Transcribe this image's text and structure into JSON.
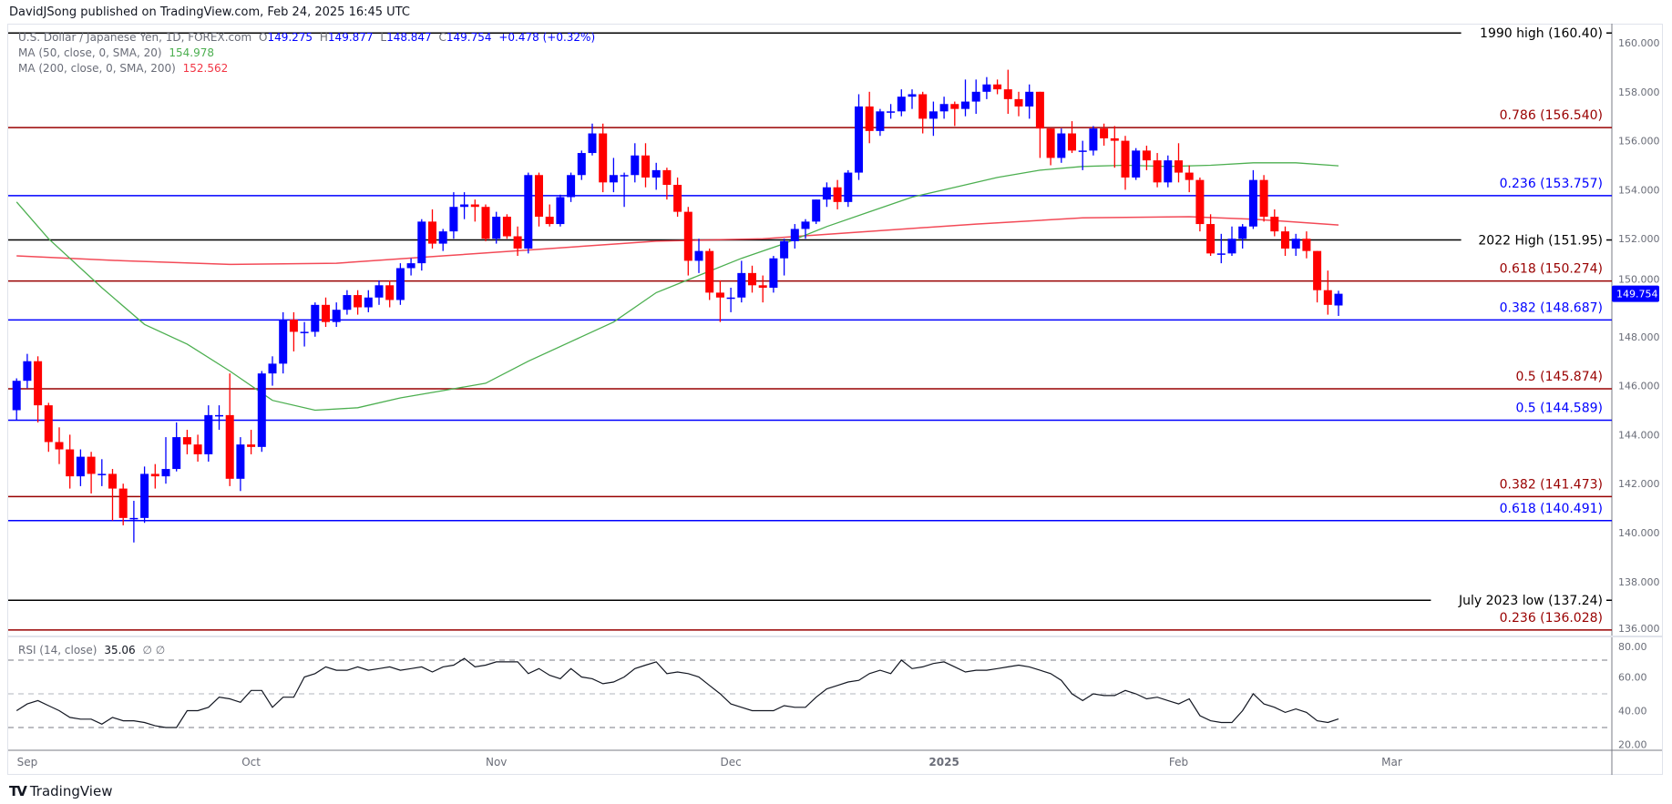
{
  "publisher_line": "DavidJSong published on TradingView.com, Feb 24, 2025 16:45 UTC",
  "legend": {
    "symbol": "U.S. Dollar / Japanese Yen, 1D, FOREX.com",
    "o_label": "O",
    "o": "149.275",
    "h_label": "H",
    "h": "149.877",
    "l_label": "L",
    "l": "148.847",
    "c_label": "C",
    "c": "149.754",
    "change": "+0.478 (+0.32%)",
    "ma50_label": "MA (50, close, 0, SMA, 20)",
    "ma50_value": "154.978",
    "ma200_label": "MA (200, close, 0, SMA, 200)",
    "ma200_value": "152.562",
    "rsi_label": "RSI (14, close)",
    "rsi_value": "35.06",
    "rsi_extra": "∅  ∅"
  },
  "brand": "TradingView",
  "colors": {
    "up": "#0000ff",
    "down": "#ff0000",
    "fib_blue": "#0000ff",
    "fib_red": "#990000",
    "ma50": "#4caf50",
    "ma200": "#f23645",
    "level_black": "#000000"
  },
  "chart_data": {
    "type": "candlestick",
    "title": "U.S. Dollar / Japanese Yen, 1D, FOREX.com",
    "ylim": [
      135.6,
      160.8
    ],
    "y_ticks": [
      "160.000",
      "158.000",
      "156.000",
      "154.000",
      "152.000",
      "150.000",
      "148.000",
      "146.000",
      "144.000",
      "142.000",
      "140.000",
      "138.000",
      "136.000"
    ],
    "y_tick_values": [
      160,
      158,
      156,
      154,
      152,
      150,
      148,
      146,
      144,
      142,
      140,
      138,
      136
    ],
    "x_labels": [
      {
        "label": "Sep",
        "bar": 1
      },
      {
        "label": "Oct",
        "bar": 22
      },
      {
        "label": "Nov",
        "bar": 45
      },
      {
        "label": "Dec",
        "bar": 67
      },
      {
        "label": "2025",
        "bar": 87
      },
      {
        "label": "Feb",
        "bar": 109
      },
      {
        "label": "Mar",
        "bar": 129
      }
    ],
    "last_price": "149.754",
    "candles": [
      [
        145.0,
        146.3,
        144.6,
        146.2
      ],
      [
        146.2,
        147.3,
        145.9,
        147.0
      ],
      [
        147.0,
        147.2,
        144.5,
        145.2
      ],
      [
        145.2,
        145.3,
        143.3,
        143.7
      ],
      [
        143.7,
        144.3,
        142.8,
        143.4
      ],
      [
        143.4,
        144.0,
        141.8,
        142.3
      ],
      [
        142.3,
        143.4,
        141.9,
        143.1
      ],
      [
        143.1,
        143.3,
        141.6,
        142.4
      ],
      [
        142.4,
        143.0,
        141.9,
        142.4
      ],
      [
        142.4,
        142.6,
        140.5,
        141.8
      ],
      [
        141.8,
        142.0,
        140.3,
        140.6
      ],
      [
        140.6,
        141.3,
        139.6,
        140.6
      ],
      [
        140.6,
        142.7,
        140.4,
        142.4
      ],
      [
        142.4,
        142.8,
        141.8,
        142.3
      ],
      [
        142.3,
        143.9,
        142.0,
        142.6
      ],
      [
        142.6,
        144.5,
        142.5,
        143.9
      ],
      [
        143.9,
        144.2,
        143.2,
        143.6
      ],
      [
        143.6,
        144.0,
        142.9,
        143.2
      ],
      [
        143.2,
        145.2,
        142.9,
        144.8
      ],
      [
        144.8,
        145.2,
        144.2,
        144.8
      ],
      [
        144.8,
        146.5,
        141.9,
        142.2
      ],
      [
        142.2,
        143.9,
        141.7,
        143.6
      ],
      [
        143.6,
        144.2,
        143.2,
        143.5
      ],
      [
        143.5,
        146.6,
        143.3,
        146.5
      ],
      [
        146.5,
        147.2,
        146.0,
        146.9
      ],
      [
        146.9,
        149.0,
        146.5,
        148.7
      ],
      [
        148.7,
        149.0,
        147.4,
        148.2
      ],
      [
        148.2,
        148.6,
        147.6,
        148.2
      ],
      [
        148.2,
        149.4,
        148.0,
        149.3
      ],
      [
        149.3,
        149.6,
        148.4,
        148.6
      ],
      [
        148.6,
        149.4,
        148.4,
        149.1
      ],
      [
        149.1,
        149.9,
        148.9,
        149.7
      ],
      [
        149.7,
        149.9,
        148.9,
        149.2
      ],
      [
        149.2,
        149.9,
        149.0,
        149.6
      ],
      [
        149.6,
        150.3,
        149.3,
        150.1
      ],
      [
        150.1,
        150.3,
        149.2,
        149.5
      ],
      [
        149.5,
        151.0,
        149.3,
        150.8
      ],
      [
        150.8,
        151.2,
        150.5,
        151.0
      ],
      [
        151.0,
        152.8,
        150.7,
        152.7
      ],
      [
        152.7,
        153.2,
        151.6,
        151.8
      ],
      [
        151.8,
        152.4,
        151.5,
        152.3
      ],
      [
        152.3,
        153.9,
        152.0,
        153.3
      ],
      [
        153.3,
        153.9,
        152.8,
        153.4
      ],
      [
        153.4,
        153.6,
        152.7,
        153.3
      ],
      [
        153.3,
        153.4,
        151.9,
        152.0
      ],
      [
        152.0,
        153.1,
        151.8,
        152.9
      ],
      [
        152.9,
        153.0,
        152.0,
        152.1
      ],
      [
        152.1,
        152.5,
        151.3,
        151.6
      ],
      [
        151.6,
        154.7,
        151.4,
        154.6
      ],
      [
        154.6,
        154.7,
        152.5,
        152.9
      ],
      [
        152.9,
        153.4,
        152.5,
        152.6
      ],
      [
        152.6,
        153.8,
        152.5,
        153.7
      ],
      [
        153.7,
        154.7,
        153.5,
        154.6
      ],
      [
        154.6,
        155.6,
        154.4,
        155.5
      ],
      [
        155.5,
        156.7,
        155.4,
        156.3
      ],
      [
        156.3,
        156.7,
        153.9,
        154.3
      ],
      [
        154.3,
        155.3,
        153.9,
        154.6
      ],
      [
        154.6,
        154.7,
        153.3,
        154.6
      ],
      [
        154.6,
        155.9,
        154.3,
        155.4
      ],
      [
        155.4,
        155.9,
        154.1,
        154.5
      ],
      [
        154.5,
        155.1,
        154.0,
        154.8
      ],
      [
        154.8,
        154.9,
        153.6,
        154.2
      ],
      [
        154.2,
        154.5,
        152.9,
        153.1
      ],
      [
        153.1,
        153.3,
        150.5,
        151.1
      ],
      [
        151.1,
        152.0,
        150.6,
        151.5
      ],
      [
        151.5,
        151.6,
        149.5,
        149.8
      ],
      [
        149.8,
        150.3,
        148.6,
        149.6
      ],
      [
        149.6,
        150.0,
        149.0,
        149.6
      ],
      [
        149.6,
        151.1,
        149.4,
        150.6
      ],
      [
        150.6,
        150.9,
        149.8,
        150.1
      ],
      [
        150.1,
        150.5,
        149.4,
        150.0
      ],
      [
        150.0,
        151.3,
        149.8,
        151.2
      ],
      [
        151.2,
        152.0,
        150.5,
        151.9
      ],
      [
        151.9,
        152.6,
        151.6,
        152.4
      ],
      [
        152.4,
        152.8,
        152.0,
        152.7
      ],
      [
        152.7,
        153.6,
        152.6,
        153.6
      ],
      [
        153.6,
        154.3,
        153.3,
        154.1
      ],
      [
        154.1,
        154.4,
        153.2,
        153.5
      ],
      [
        153.5,
        154.8,
        153.3,
        154.7
      ],
      [
        154.7,
        157.9,
        154.4,
        157.4
      ],
      [
        157.4,
        158.0,
        155.9,
        156.4
      ],
      [
        156.4,
        157.3,
        156.2,
        157.2
      ],
      [
        157.2,
        157.5,
        156.9,
        157.2
      ],
      [
        157.2,
        158.1,
        157.0,
        157.8
      ],
      [
        157.8,
        158.1,
        157.3,
        157.9
      ],
      [
        157.9,
        158.0,
        156.3,
        156.9
      ],
      [
        156.9,
        157.6,
        156.2,
        157.2
      ],
      [
        157.2,
        157.8,
        156.9,
        157.5
      ],
      [
        157.5,
        157.6,
        156.6,
        157.3
      ],
      [
        157.3,
        158.5,
        157.0,
        157.6
      ],
      [
        157.6,
        158.5,
        157.1,
        158.0
      ],
      [
        158.0,
        158.6,
        157.7,
        158.3
      ],
      [
        158.3,
        158.5,
        157.9,
        158.1
      ],
      [
        158.1,
        158.9,
        157.1,
        157.7
      ],
      [
        157.7,
        158.0,
        157.0,
        157.4
      ],
      [
        157.4,
        158.3,
        156.9,
        158.0
      ],
      [
        158.0,
        158.0,
        155.3,
        156.5
      ],
      [
        156.5,
        156.5,
        155.0,
        155.3
      ],
      [
        155.3,
        156.5,
        155.1,
        156.3
      ],
      [
        156.3,
        156.8,
        155.5,
        155.6
      ],
      [
        155.6,
        156.0,
        154.8,
        155.6
      ],
      [
        155.6,
        156.6,
        155.4,
        156.5
      ],
      [
        156.5,
        156.7,
        155.8,
        156.1
      ],
      [
        156.1,
        156.6,
        154.9,
        156.0
      ],
      [
        156.0,
        156.2,
        154.0,
        154.5
      ],
      [
        154.5,
        155.7,
        154.4,
        155.6
      ],
      [
        155.6,
        155.8,
        154.8,
        155.2
      ],
      [
        155.2,
        155.5,
        154.1,
        154.3
      ],
      [
        154.3,
        155.4,
        154.1,
        155.2
      ],
      [
        155.2,
        155.9,
        154.3,
        154.7
      ],
      [
        154.7,
        155.0,
        153.9,
        154.4
      ],
      [
        154.4,
        154.5,
        152.3,
        152.6
      ],
      [
        152.6,
        153.0,
        151.3,
        151.4
      ],
      [
        151.4,
        152.2,
        151.0,
        151.4
      ],
      [
        151.4,
        152.5,
        151.3,
        152.0
      ],
      [
        152.0,
        152.6,
        151.6,
        152.5
      ],
      [
        152.5,
        154.8,
        152.4,
        154.4
      ],
      [
        154.4,
        154.6,
        152.7,
        152.9
      ],
      [
        152.9,
        153.2,
        152.1,
        152.3
      ],
      [
        152.3,
        152.5,
        151.3,
        151.6
      ],
      [
        151.6,
        152.2,
        151.3,
        152.0
      ],
      [
        152.0,
        152.3,
        151.2,
        151.5
      ],
      [
        151.5,
        151.5,
        149.4,
        149.9
      ],
      [
        149.9,
        150.7,
        148.9,
        149.3
      ],
      [
        149.275,
        149.877,
        148.847,
        149.754
      ]
    ],
    "ma50": [
      [
        0,
        153.5
      ],
      [
        3,
        152.0
      ],
      [
        8,
        150.0
      ],
      [
        12,
        148.5
      ],
      [
        16,
        147.7
      ],
      [
        20,
        146.6
      ],
      [
        24,
        145.4
      ],
      [
        28,
        145.0
      ],
      [
        32,
        145.1
      ],
      [
        36,
        145.5
      ],
      [
        40,
        145.8
      ],
      [
        44,
        146.1
      ],
      [
        48,
        147.0
      ],
      [
        52,
        147.8
      ],
      [
        56,
        148.6
      ],
      [
        60,
        149.8
      ],
      [
        64,
        150.5
      ],
      [
        68,
        151.2
      ],
      [
        72,
        151.8
      ],
      [
        76,
        152.5
      ],
      [
        80,
        153.1
      ],
      [
        84,
        153.7
      ],
      [
        88,
        154.1
      ],
      [
        92,
        154.5
      ],
      [
        96,
        154.8
      ],
      [
        100,
        154.95
      ],
      [
        104,
        155.0
      ],
      [
        108,
        154.95
      ],
      [
        112,
        155.0
      ],
      [
        116,
        155.1
      ],
      [
        120,
        155.1
      ],
      [
        124,
        154.978
      ]
    ],
    "ma200": [
      [
        0,
        151.3
      ],
      [
        10,
        151.1
      ],
      [
        20,
        150.95
      ],
      [
        30,
        151.0
      ],
      [
        40,
        151.3
      ],
      [
        50,
        151.6
      ],
      [
        60,
        151.9
      ],
      [
        70,
        152.0
      ],
      [
        80,
        152.3
      ],
      [
        90,
        152.6
      ],
      [
        100,
        152.85
      ],
      [
        110,
        152.9
      ],
      [
        116,
        152.8
      ],
      [
        124,
        152.562
      ]
    ],
    "levels": [
      {
        "price": 160.4,
        "label": "1990 high (160.40)",
        "color": "#000000",
        "style": "inline"
      },
      {
        "price": 156.54,
        "label": "0.786 (156.540)",
        "color": "#990000",
        "style": "above"
      },
      {
        "price": 153.757,
        "label": "0.236 (153.757)",
        "color": "#0000ff",
        "style": "above"
      },
      {
        "price": 151.95,
        "label": "2022 High (151.95)",
        "color": "#000000",
        "style": "inline"
      },
      {
        "price": 150.274,
        "label": "0.618 (150.274)",
        "color": "#990000",
        "style": "above"
      },
      {
        "price": 148.687,
        "label": "0.382 (148.687)",
        "color": "#0000ff",
        "style": "above"
      },
      {
        "price": 145.874,
        "label": "0.5 (145.874)",
        "color": "#990000",
        "style": "above"
      },
      {
        "price": 144.589,
        "label": "0.5 (144.589)",
        "color": "#0000ff",
        "style": "above"
      },
      {
        "price": 141.473,
        "label": "0.382 (141.473)",
        "color": "#990000",
        "style": "above"
      },
      {
        "price": 140.491,
        "label": "0.618 (140.491)",
        "color": "#0000ff",
        "style": "above"
      },
      {
        "price": 137.24,
        "label": "July 2023 low (137.24)",
        "color": "#000000",
        "style": "inline"
      },
      {
        "price": 136.028,
        "label": "0.236 (136.028)",
        "color": "#990000",
        "style": "above"
      }
    ],
    "rsi": {
      "ylim": [
        20,
        80
      ],
      "ticks": [
        "80.00",
        "60.00",
        "40.00",
        "20.00"
      ],
      "tick_values": [
        80,
        60,
        40,
        20
      ],
      "bands": [
        70,
        50,
        30
      ],
      "values": [
        40,
        44,
        46,
        43,
        40,
        36,
        35,
        35,
        32,
        36,
        34,
        34,
        33,
        31,
        30,
        30,
        40,
        40,
        42,
        48,
        47,
        45,
        52,
        52,
        42,
        48,
        48,
        60,
        62,
        66,
        64,
        64,
        66,
        64,
        65,
        66,
        64,
        65,
        66,
        63,
        66,
        67,
        71,
        66,
        67,
        69,
        69,
        69,
        62,
        65,
        61,
        59,
        65,
        60,
        59,
        56,
        57,
        60,
        65,
        67,
        69,
        62,
        63,
        62,
        60,
        55,
        50,
        44,
        42,
        40,
        40,
        40,
        43,
        42,
        42,
        48,
        53,
        55,
        57,
        58,
        62,
        64,
        62,
        70,
        65,
        66,
        68,
        69,
        66,
        63,
        64,
        64,
        65,
        66,
        67,
        66,
        64,
        62,
        58,
        50,
        46,
        50,
        49,
        49,
        52,
        50,
        47,
        48,
        46,
        44,
        47,
        37,
        34,
        33,
        33,
        40,
        50,
        44,
        42,
        39,
        41,
        39,
        34,
        33,
        35.06
      ]
    }
  }
}
